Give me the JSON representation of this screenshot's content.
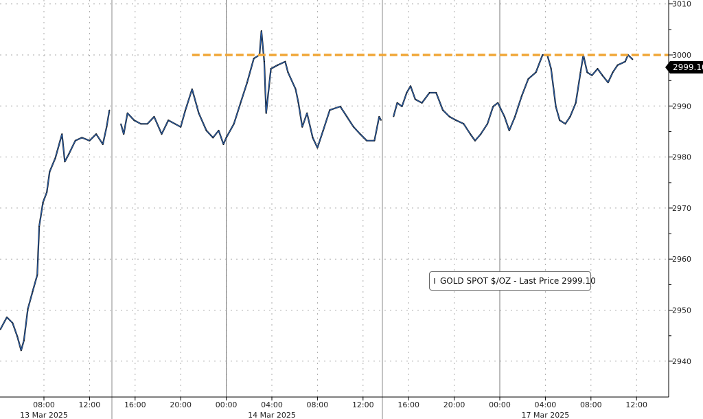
{
  "chart_data": {
    "type": "line",
    "title": "",
    "xlabel": "",
    "ylabel": "",
    "ylim": [
      2933,
      3010
    ],
    "yticks": [
      2940,
      2950,
      2960,
      2970,
      2980,
      2990,
      3000,
      3010
    ],
    "grid": true,
    "y_axis_side": "right",
    "legend_placement": "center-right",
    "colors": {
      "line": "#2a5ea8",
      "line_dark": "#111111",
      "reference": "#f0a637",
      "grid": "#999999"
    },
    "xticks": [
      {
        "label": "08:00",
        "t": "2025-03-13T08:00"
      },
      {
        "label": "12:00",
        "t": "2025-03-13T12:00"
      },
      {
        "label": "16:00",
        "t": "2025-03-13T16:00"
      },
      {
        "label": "20:00",
        "t": "2025-03-13T20:00"
      },
      {
        "label": "00:00",
        "t": "2025-03-14T00:00"
      },
      {
        "label": "04:00",
        "t": "2025-03-14T04:00"
      },
      {
        "label": "08:00",
        "t": "2025-03-14T08:00"
      },
      {
        "label": "12:00",
        "t": "2025-03-14T12:00"
      },
      {
        "label": "16:00",
        "t": "2025-03-16T16:00"
      },
      {
        "label": "20:00",
        "t": "2025-03-16T20:00"
      },
      {
        "label": "00:00",
        "t": "2025-03-17T00:00"
      },
      {
        "label": "04:00",
        "t": "2025-03-17T04:00"
      },
      {
        "label": "08:00",
        "t": "2025-03-17T08:00"
      },
      {
        "label": "12:00",
        "t": "2025-03-17T12:00"
      }
    ],
    "date_labels": [
      {
        "label": "13 Mar 2025",
        "t": "2025-03-13T08:00"
      },
      {
        "label": "14 Mar 2025",
        "t": "2025-03-14T04:00"
      },
      {
        "label": "17 Mar 2025",
        "t": "2025-03-17T04:00"
      }
    ],
    "reference_line": {
      "value": 3000,
      "from": "2025-03-13T21:00",
      "style": "dashed"
    },
    "last_price": "2999.10",
    "series": [
      {
        "name": "GOLD SPOT $/OZ - Last Price 2999.10",
        "segments": [
          [
            [
              "2025-03-13T04:10",
              2946.2
            ],
            [
              "2025-03-13T04:45",
              2948.6
            ],
            [
              "2025-03-13T05:15",
              2947.5
            ],
            [
              "2025-03-13T05:40",
              2944.8
            ],
            [
              "2025-03-13T06:00",
              2942.1
            ],
            [
              "2025-03-13T06:15",
              2944.1
            ],
            [
              "2025-03-13T06:35",
              2950.2
            ],
            [
              "2025-03-13T07:00",
              2953.6
            ],
            [
              "2025-03-13T07:25",
              2956.9
            ],
            [
              "2025-03-13T07:35",
              2966.4
            ],
            [
              "2025-03-13T07:55",
              2971.1
            ],
            [
              "2025-03-13T08:15",
              2973.1
            ],
            [
              "2025-03-13T08:30",
              2977.1
            ],
            [
              "2025-03-13T09:00",
              2979.8
            ],
            [
              "2025-03-13T09:35",
              2984.5
            ],
            [
              "2025-03-13T09:50",
              2979.1
            ],
            [
              "2025-03-13T10:10",
              2980.5
            ],
            [
              "2025-03-13T10:45",
              2983.2
            ],
            [
              "2025-03-13T11:20",
              2983.8
            ],
            [
              "2025-03-13T12:00",
              2983.2
            ],
            [
              "2025-03-13T12:35",
              2984.5
            ],
            [
              "2025-03-13T13:10",
              2982.5
            ],
            [
              "2025-03-13T13:30",
              2985.9
            ],
            [
              "2025-03-13T13:45",
              2989.2
            ]
          ],
          [
            [
              "2025-03-13T14:45",
              2986.5
            ],
            [
              "2025-03-13T15:00",
              2984.5
            ],
            [
              "2025-03-13T15:20",
              2988.6
            ],
            [
              "2025-03-13T15:55",
              2987.2
            ],
            [
              "2025-03-13T16:30",
              2986.5
            ],
            [
              "2025-03-13T17:05",
              2986.5
            ],
            [
              "2025-03-13T17:40",
              2987.9
            ],
            [
              "2025-03-13T18:20",
              2984.5
            ],
            [
              "2025-03-13T18:55",
              2987.2
            ],
            [
              "2025-03-13T19:30",
              2986.5
            ],
            [
              "2025-03-13T20:00",
              2985.9
            ],
            [
              "2025-03-13T20:25",
              2989.2
            ],
            [
              "2025-03-13T21:00",
              2993.3
            ],
            [
              "2025-03-13T21:35",
              2988.6
            ],
            [
              "2025-03-13T22:15",
              2985.2
            ],
            [
              "2025-03-13T22:50",
              2983.8
            ],
            [
              "2025-03-13T23:20",
              2985.2
            ],
            [
              "2025-03-13T23:45",
              2982.5
            ],
            [
              "2025-03-14T00:00",
              2983.8
            ],
            [
              "2025-03-14T00:40",
              2986.5
            ],
            [
              "2025-03-14T01:15",
              2990.6
            ],
            [
              "2025-03-14T01:50",
              2994.6
            ],
            [
              "2025-03-14T02:25",
              2999.3
            ],
            [
              "2025-03-14T02:55",
              3000.0
            ],
            [
              "2025-03-14T03:05",
              3004.7
            ],
            [
              "2025-03-14T03:20",
              2998.7
            ],
            [
              "2025-03-14T03:30",
              2988.6
            ],
            [
              "2025-03-14T03:55",
              2997.3
            ],
            [
              "2025-03-14T04:30",
              2998.0
            ],
            [
              "2025-03-14T05:10",
              2998.7
            ],
            [
              "2025-03-14T05:25",
              2996.6
            ],
            [
              "2025-03-14T06:05",
              2993.3
            ],
            [
              "2025-03-14T06:20",
              2990.6
            ],
            [
              "2025-03-14T06:40",
              2985.9
            ],
            [
              "2025-03-14T07:05",
              2988.6
            ],
            [
              "2025-03-14T07:35",
              2983.8
            ],
            [
              "2025-03-14T08:00",
              2981.8
            ],
            [
              "2025-03-14T08:30",
              2985.2
            ],
            [
              "2025-03-14T09:05",
              2989.2
            ],
            [
              "2025-03-14T10:00",
              2989.9
            ],
            [
              "2025-03-14T10:35",
              2987.9
            ],
            [
              "2025-03-14T11:10",
              2985.9
            ],
            [
              "2025-03-14T11:45",
              2984.5
            ],
            [
              "2025-03-14T12:20",
              2983.2
            ],
            [
              "2025-03-14T13:00",
              2983.2
            ],
            [
              "2025-03-14T13:25",
              2987.9
            ],
            [
              "2025-03-14T13:35",
              2987.2
            ]
          ],
          [
            [
              "2025-03-16T14:40",
              2987.9
            ],
            [
              "2025-03-16T15:00",
              2990.6
            ],
            [
              "2025-03-16T15:25",
              2989.9
            ],
            [
              "2025-03-16T15:50",
              2992.6
            ],
            [
              "2025-03-16T16:10",
              2993.9
            ],
            [
              "2025-03-16T16:35",
              2991.3
            ],
            [
              "2025-03-16T17:10",
              2990.6
            ],
            [
              "2025-03-16T17:50",
              2992.6
            ],
            [
              "2025-03-16T18:25",
              2992.6
            ],
            [
              "2025-03-16T19:00",
              2989.2
            ],
            [
              "2025-03-16T19:35",
              2987.9
            ],
            [
              "2025-03-16T20:10",
              2987.2
            ],
            [
              "2025-03-16T20:50",
              2986.5
            ],
            [
              "2025-03-16T21:25",
              2984.5
            ],
            [
              "2025-03-16T21:50",
              2983.2
            ],
            [
              "2025-03-16T22:20",
              2984.5
            ],
            [
              "2025-03-16T22:55",
              2986.5
            ],
            [
              "2025-03-16T23:25",
              2989.9
            ],
            [
              "2025-03-16T23:50",
              2990.6
            ],
            [
              "2025-03-17T00:25",
              2987.9
            ],
            [
              "2025-03-17T00:50",
              2985.2
            ],
            [
              "2025-03-17T01:20",
              2987.9
            ],
            [
              "2025-03-17T01:55",
              2991.9
            ],
            [
              "2025-03-17T02:30",
              2995.3
            ],
            [
              "2025-03-17T03:10",
              2996.6
            ],
            [
              "2025-03-17T03:45",
              3000.0
            ],
            [
              "2025-03-17T04:10",
              3000.0
            ],
            [
              "2025-03-17T04:30",
              2997.3
            ],
            [
              "2025-03-17T04:55",
              2989.9
            ],
            [
              "2025-03-17T05:15",
              2987.2
            ],
            [
              "2025-03-17T05:45",
              2986.5
            ],
            [
              "2025-03-17T06:10",
              2987.9
            ],
            [
              "2025-03-17T06:40",
              2990.6
            ],
            [
              "2025-03-17T07:05",
              2996.6
            ],
            [
              "2025-03-17T07:20",
              3000.0
            ],
            [
              "2025-03-17T07:40",
              2996.6
            ],
            [
              "2025-03-17T08:05",
              2996.0
            ],
            [
              "2025-03-17T08:35",
              2997.3
            ],
            [
              "2025-03-17T09:00",
              2996.0
            ],
            [
              "2025-03-17T09:30",
              2994.6
            ],
            [
              "2025-03-17T09:55",
              2996.6
            ],
            [
              "2025-03-17T10:20",
              2998.0
            ],
            [
              "2025-03-17T11:00",
              2998.7
            ],
            [
              "2025-03-17T11:15",
              3000.0
            ],
            [
              "2025-03-17T11:40",
              2999.1
            ]
          ]
        ]
      }
    ]
  },
  "legend": {
    "label": "GOLD SPOT $/OZ - Last Price 2999.10"
  }
}
